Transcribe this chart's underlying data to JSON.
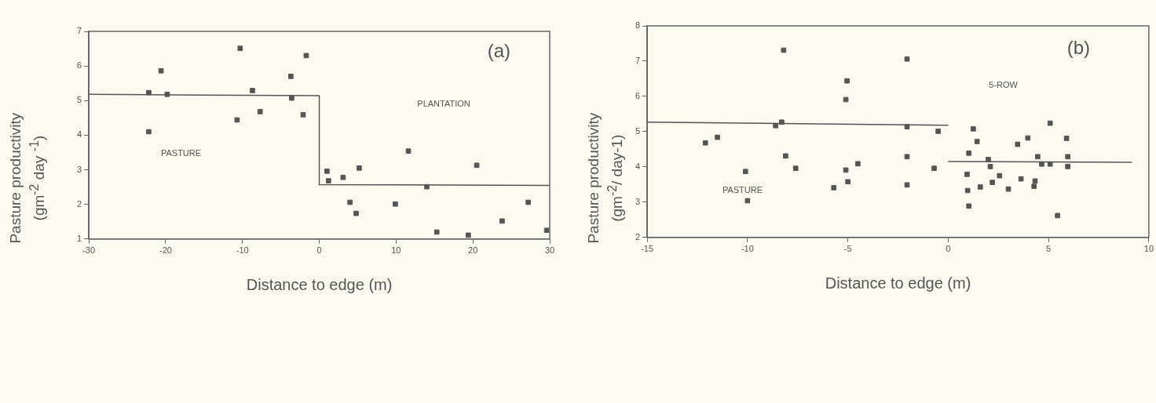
{
  "chart_data": [
    {
      "type": "scatter",
      "xlabel": "Distance to edge (m)",
      "ylabel": "Pasture productivity\n(gm$^{-2}$ day $^{-1}$)",
      "annotations": [
        "(a)",
        "PASTURE",
        "PLANTATION"
      ],
      "xlim": [
        -30,
        30
      ],
      "xticks": [
        -30,
        -20,
        -10,
        0,
        10,
        20,
        30
      ],
      "ylim": [
        1,
        7
      ],
      "yticks": [
        1,
        2,
        3,
        4,
        5,
        6,
        7
      ],
      "grid": false,
      "legend": false,
      "marker": "square",
      "series": [
        {
          "type": "scatter",
          "color": "#555555",
          "x": [
            -10.3,
            -1.7,
            -20.6,
            -3.7,
            -22.2,
            -19.8,
            -8.7,
            -3.6,
            -7.7,
            -2.1,
            -10.7,
            -22.2,
            1.0,
            1.2,
            3.1,
            5.2,
            11.6,
            20.5,
            14.0,
            4.0,
            4.8,
            9.9,
            15.3,
            19.4,
            23.8,
            27.2,
            29.6
          ],
          "values": [
            6.51,
            6.3,
            5.86,
            5.7,
            5.23,
            5.18,
            5.29,
            5.07,
            4.68,
            4.59,
            4.44,
            4.1,
            2.96,
            2.68,
            2.78,
            3.05,
            3.54,
            3.13,
            2.51,
            2.06,
            1.74,
            2.01,
            1.2,
            1.11,
            1.52,
            2.06,
            1.25
          ]
        },
        {
          "type": "line",
          "color": "#555555",
          "line_style": "solid",
          "marker": "none",
          "x": [
            -30,
            0,
            0,
            30
          ],
          "values": [
            5.18,
            5.14,
            2.57,
            2.55
          ]
        }
      ]
    },
    {
      "type": "scatter",
      "xlabel": "Distance to edge (m)",
      "ylabel": "Pasture productivity\n(gm$^{-2}$/ day-1)",
      "annotations": [
        "(b)",
        "5-ROW",
        "PASTURE"
      ],
      "xlim": [
        -15,
        10
      ],
      "xticks": [
        -15,
        -10,
        -5,
        0,
        5,
        10
      ],
      "ylim": [
        2,
        8
      ],
      "yticks": [
        2,
        3,
        4,
        5,
        6,
        7,
        8
      ],
      "grid": false,
      "legend": false,
      "marker": "square",
      "series": [
        {
          "type": "scatter",
          "color": "#555555",
          "x": [
            -8.2,
            -5.04,
            -5.1,
            -8.6,
            -8.3,
            -12.1,
            -11.5,
            -8.1,
            -7.6,
            -10.1,
            -10.0,
            -5.7,
            -5.1,
            -5.0,
            -4.5,
            -2.05,
            -2.05,
            -0.5,
            -2.05,
            -0.7,
            -2.05,
            1.25,
            1.44,
            1.03,
            2.0,
            2.1,
            0.94,
            2.56,
            2.2,
            1.6,
            0.97,
            3.0,
            1.03,
            3.46,
            3.97,
            3.63,
            4.33,
            4.28,
            4.46,
            4.66,
            5.08,
            5.08,
            5.45,
            5.9,
            5.96,
            5.96
          ],
          "values": [
            7.31,
            6.44,
            5.91,
            5.17,
            5.27,
            4.68,
            4.84,
            4.31,
            3.96,
            3.87,
            3.04,
            3.41,
            3.91,
            3.58,
            4.09,
            7.06,
            5.14,
            5.01,
            4.29,
            3.96,
            3.49,
            5.08,
            4.72,
            4.39,
            4.21,
            4.01,
            3.79,
            3.75,
            3.56,
            3.43,
            3.33,
            3.37,
            2.89,
            4.64,
            4.82,
            3.66,
            3.6,
            3.45,
            4.29,
            4.08,
            4.08,
            5.24,
            2.62,
            4.81,
            4.29,
            4.01
          ]
        },
        {
          "type": "line",
          "color": "#555555",
          "line_style": "solid",
          "marker": "none",
          "x": [
            -15,
            0
          ],
          "values": [
            5.27,
            5.18
          ]
        },
        {
          "type": "line",
          "color": "#555555",
          "line_style": "solid",
          "marker": "none",
          "x": [
            0,
            9.15
          ],
          "values": [
            4.15,
            4.13
          ]
        }
      ]
    }
  ]
}
